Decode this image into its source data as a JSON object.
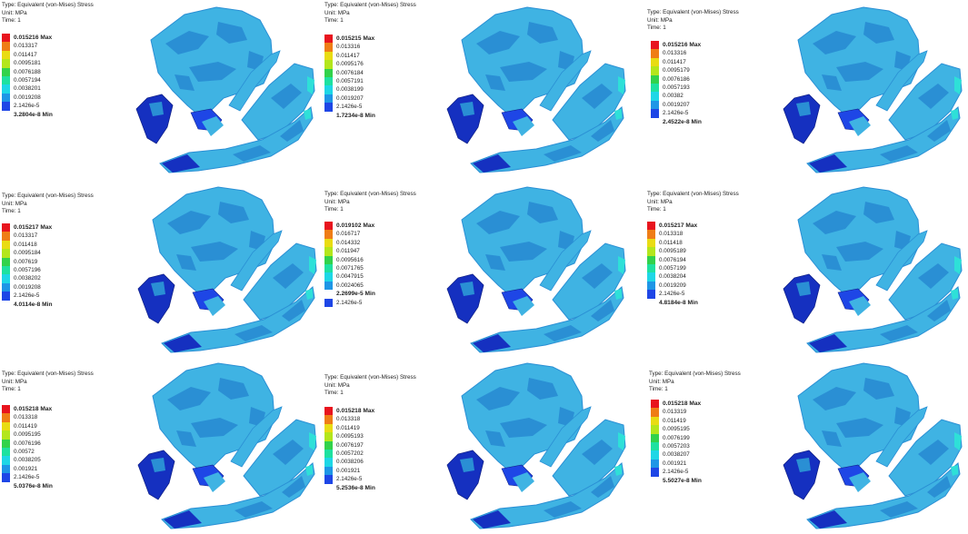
{
  "header": {
    "type_line": "Type: Equivalent (von-Mises) Stress",
    "unit_line": "Unit: MPa",
    "time_line": "Time: 1"
  },
  "colors": {
    "scale": [
      "#e8141e",
      "#ef7d16",
      "#e9dc13",
      "#b4e61c",
      "#32d24b",
      "#1ee1a0",
      "#1ed7e6",
      "#1e96e6",
      "#1e46e6"
    ],
    "mesh_light": "#3fb3e3",
    "mesh_mid": "#2a8fd4",
    "mesh_dark": "#1530c0",
    "mesh_cyan": "#2ee0d8"
  },
  "panels": [
    {
      "id": "p1",
      "labels": [
        "0.015216 Max",
        "0.013317",
        "0.011417",
        "0.0095181",
        "0.0076188",
        "0.0057194",
        "0.0038201",
        "0.0019208",
        "2.1426e-5",
        "3.2804e-8 Min"
      ]
    },
    {
      "id": "p2",
      "labels": [
        "0.015215 Max",
        "0.013316",
        "0.011417",
        "0.0095176",
        "0.0076184",
        "0.0057191",
        "0.0038199",
        "0.0019207",
        "2.1426e-5",
        "1.7234e-8 Min"
      ]
    },
    {
      "id": "p3",
      "labels": [
        "0.015216 Max",
        "0.013316",
        "0.011417",
        "0.0095179",
        "0.0076186",
        "0.0057193",
        "0.00382",
        "0.0019207",
        "2.1426e-5",
        "2.4522e-8 Min"
      ]
    },
    {
      "id": "p4",
      "labels": [
        "0.015217 Max",
        "0.013317",
        "0.011418",
        "0.0095184",
        "0.007619",
        "0.0057196",
        "0.0038202",
        "0.0019208",
        "2.1426e-5",
        "4.0114e-8 Min"
      ]
    },
    {
      "id": "p5",
      "labels": [
        "0.019102 Max",
        "0.016717",
        "0.014332",
        "0.011947",
        "0.0095616",
        "0.0071765",
        "0.0047915",
        "0.0024065",
        "2.2699e-5 Min",
        "2.1426e-5"
      ]
    },
    {
      "id": "p6",
      "labels": [
        "0.015217 Max",
        "0.013318",
        "0.011418",
        "0.0095189",
        "0.0076194",
        "0.0057199",
        "0.0038204",
        "0.0019209",
        "2.1426e-5",
        "4.8184e-8 Min"
      ]
    },
    {
      "id": "p7",
      "labels": [
        "0.015218 Max",
        "0.013318",
        "0.011419",
        "0.0095195",
        "0.0076196",
        "0.00572",
        "0.0038205",
        "0.001921",
        "2.1426e-5",
        "5.0376e-8 Min"
      ]
    },
    {
      "id": "p8",
      "labels": [
        "0.015218 Max",
        "0.013318",
        "0.011419",
        "0.0095193",
        "0.0076197",
        "0.0057202",
        "0.0038206",
        "0.001921",
        "2.1426e-5",
        "5.2536e-8 Min"
      ]
    },
    {
      "id": "p9",
      "labels": [
        "0.015218 Max",
        "0.013319",
        "0.011419",
        "0.0095195",
        "0.0076199",
        "0.0057203",
        "0.0038207",
        "0.001921",
        "2.1426e-5",
        "5.5027e-8 Min"
      ]
    }
  ]
}
